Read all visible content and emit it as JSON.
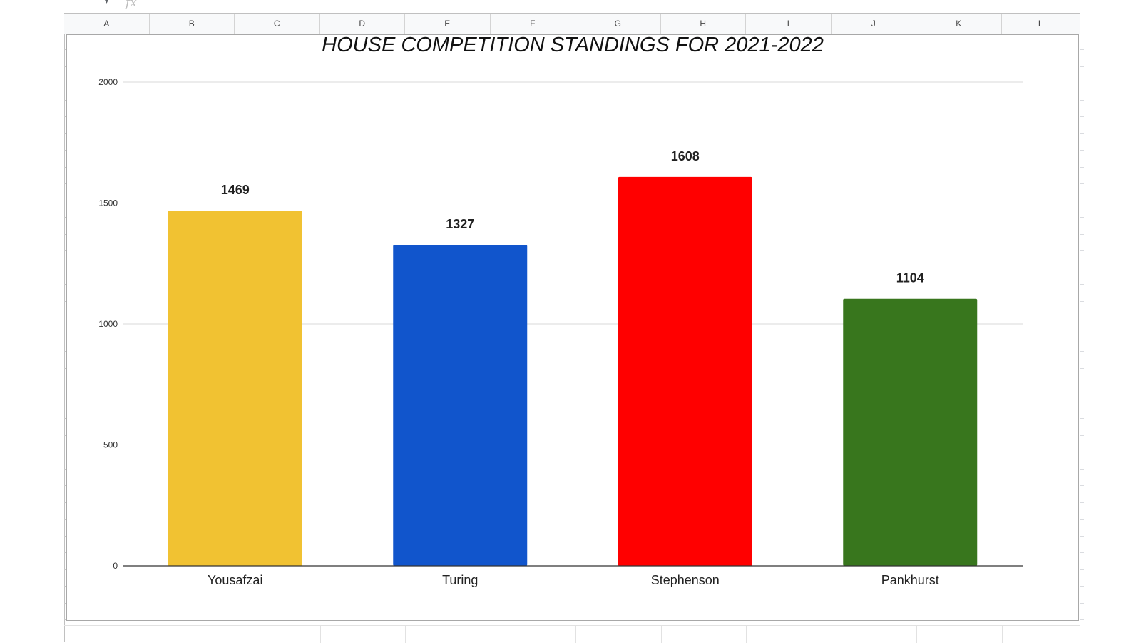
{
  "spreadsheet": {
    "name_box_dropdown_glyph": "▾",
    "formula_icon": "fx",
    "columns": [
      "A",
      "B",
      "C",
      "D",
      "E",
      "F",
      "G",
      "H",
      "I",
      "J",
      "K",
      "L"
    ]
  },
  "colors": {
    "gridline": "#d9d9d9",
    "axis": "#333333",
    "header_bg": "#f8f9fa"
  },
  "chart_data": {
    "type": "bar",
    "title": "HOUSE COMPETITION STANDINGS FOR 2021-2022",
    "xlabel": "",
    "ylabel": "",
    "categories": [
      "Yousafzai",
      "Turing",
      "Stephenson",
      "Pankhurst"
    ],
    "values": [
      1469,
      1327,
      1608,
      1104
    ],
    "bar_colors": [
      "#f1c232",
      "#1155cc",
      "#ff0000",
      "#38761d"
    ],
    "data_labels": [
      "1469",
      "1327",
      "1608",
      "1104"
    ],
    "ylim": [
      0,
      2000
    ],
    "yticks": [
      0,
      500,
      1000,
      1500,
      2000
    ],
    "grid": true,
    "legend": "none"
  }
}
